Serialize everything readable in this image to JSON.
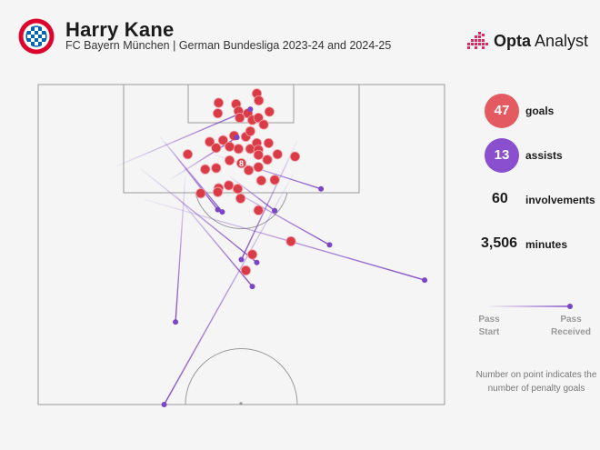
{
  "header": {
    "player": "Harry Kane",
    "subtitle": "FC Bayern München | German Bundesliga 2023-24 and 2024-25",
    "brand_bold": "Opta",
    "brand_light": " Analyst",
    "crest_icon": "fc-bayern-crest-icon"
  },
  "stats": {
    "goals": {
      "value": "47",
      "label": "goals",
      "color": "#e45a61"
    },
    "assists": {
      "value": "13",
      "label": "assists",
      "color": "#8a4fcf"
    },
    "involvements": {
      "value": "60",
      "label": "involvements"
    },
    "minutes": {
      "value": "3,506",
      "label": "minutes"
    }
  },
  "legend": {
    "pass_start": "Pass\nStart",
    "pass_received": "Pass\nReceived"
  },
  "note": "Number on point indicates the number of penalty goals",
  "colors": {
    "goal": "#d93c47",
    "goal_stroke": "#f3a3a8",
    "assist": "#7b45c4",
    "pitch_line": "#9a9a9a",
    "background": "#f5f5f5"
  },
  "chart_data": {
    "type": "scatter",
    "title": "Harry Kane",
    "coordinate_system": "pitch units, 0-100 across width (left to right), 0-100 length from goal line (top) towards halfway line (bottom)",
    "goals": [
      {
        "x": 44.4,
        "y": 5.7
      },
      {
        "x": 48.7,
        "y": 6.1
      },
      {
        "x": 53.8,
        "y": 2.8
      },
      {
        "x": 54.3,
        "y": 5.0
      },
      {
        "x": 44.2,
        "y": 9.0
      },
      {
        "x": 49.3,
        "y": 8.3
      },
      {
        "x": 51.6,
        "y": 9.0
      },
      {
        "x": 56.9,
        "y": 8.5
      },
      {
        "x": 49.6,
        "y": 10.4
      },
      {
        "x": 52.7,
        "y": 11.1
      },
      {
        "x": 54.2,
        "y": 10.4
      },
      {
        "x": 55.5,
        "y": 12.5
      },
      {
        "x": 42.2,
        "y": 17.9
      },
      {
        "x": 45.5,
        "y": 17.4
      },
      {
        "x": 48.2,
        "y": 16.0
      },
      {
        "x": 51.1,
        "y": 16.3
      },
      {
        "x": 52.2,
        "y": 14.6
      },
      {
        "x": 43.8,
        "y": 19.8
      },
      {
        "x": 47.1,
        "y": 19.4
      },
      {
        "x": 49.3,
        "y": 20.1
      },
      {
        "x": 52.2,
        "y": 20.1
      },
      {
        "x": 53.8,
        "y": 18.3
      },
      {
        "x": 56.7,
        "y": 18.3
      },
      {
        "x": 54.2,
        "y": 20.4
      },
      {
        "x": 54.2,
        "y": 22.0
      },
      {
        "x": 36.8,
        "y": 21.8
      },
      {
        "x": 58.9,
        "y": 21.8
      },
      {
        "x": 47.1,
        "y": 23.7
      },
      {
        "x": 50.0,
        "y": 24.6,
        "penalties": 8
      },
      {
        "x": 56.4,
        "y": 23.5
      },
      {
        "x": 41.1,
        "y": 26.5
      },
      {
        "x": 43.8,
        "y": 26.1
      },
      {
        "x": 51.8,
        "y": 26.8
      },
      {
        "x": 54.2,
        "y": 25.8
      },
      {
        "x": 63.2,
        "y": 22.5
      },
      {
        "x": 54.9,
        "y": 30.0
      },
      {
        "x": 58.2,
        "y": 29.8
      },
      {
        "x": 44.4,
        "y": 32.4
      },
      {
        "x": 46.9,
        "y": 31.5
      },
      {
        "x": 49.1,
        "y": 32.6
      },
      {
        "x": 40.0,
        "y": 34.0
      },
      {
        "x": 44.2,
        "y": 33.6
      },
      {
        "x": 49.8,
        "y": 35.6
      },
      {
        "x": 54.2,
        "y": 39.3
      },
      {
        "x": 62.2,
        "y": 49.0
      },
      {
        "x": 52.7,
        "y": 53.1
      },
      {
        "x": 51.1,
        "y": 58.1
      }
    ],
    "assists": [
      {
        "start": [
          19.1,
          25.6
        ],
        "received": [
          52.2,
          7.7
        ]
      },
      {
        "start": [
          30.0,
          16.4
        ],
        "received": [
          45.3,
          39.8
        ]
      },
      {
        "start": [
          31.1,
          17.9
        ],
        "received": [
          44.2,
          39.1
        ]
      },
      {
        "start": [
          25.2,
          26.3
        ],
        "received": [
          53.8,
          55.6
        ]
      },
      {
        "start": [
          32.6,
          29.6
        ],
        "received": [
          48.9,
          16.5
        ]
      },
      {
        "start": [
          36.2,
          28.6
        ],
        "received": [
          33.8,
          74.2
        ]
      },
      {
        "start": [
          33.1,
          33.3
        ],
        "received": [
          52.7,
          63.1
        ]
      },
      {
        "start": [
          44.2,
          30.5
        ],
        "received": [
          71.7,
          50.1
        ]
      },
      {
        "start": [
          47.1,
          28.7
        ],
        "received": [
          58.2,
          39.4
        ]
      },
      {
        "start": [
          63.8,
          17.5
        ],
        "received": [
          50.0,
          54.7
        ]
      },
      {
        "start": [
          62.9,
          27.8
        ],
        "received": [
          31.0,
          100.0
        ]
      },
      {
        "start": [
          43.5,
          22.0
        ],
        "received": [
          69.6,
          32.6
        ]
      },
      {
        "start": [
          26.2,
          35.9
        ],
        "received": [
          95.1,
          61.1
        ]
      }
    ]
  }
}
